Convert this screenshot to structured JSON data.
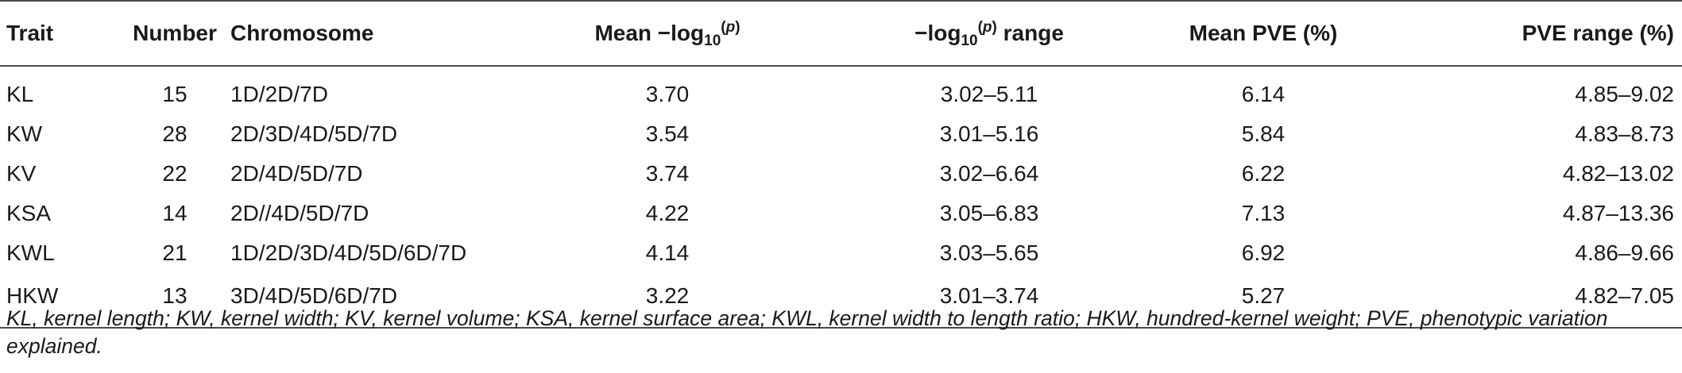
{
  "table": {
    "headers": {
      "trait": "Trait",
      "number": "Number",
      "chromosome": "Chromosome",
      "mean_log_prefix": "Mean −log",
      "mean_log_sub": "10",
      "mean_log_sup_open": "(",
      "mean_log_sup_p": "p",
      "mean_log_sup_close": ")",
      "range_log_prefix": "−log",
      "range_log_sub": "10",
      "range_log_sup_open": "(",
      "range_log_sup_p": "p",
      "range_log_sup_close": ")",
      "range_log_suffix": " range",
      "mean_pve": "Mean PVE (%)",
      "pve_range": "PVE range (%)"
    },
    "rows": [
      {
        "trait": "KL",
        "number": "15",
        "chromosome": "1D/2D/7D",
        "mean_log": "3.70",
        "log_range": "3.02–5.11",
        "mean_pve": "6.14",
        "pve_range": "4.85–9.02"
      },
      {
        "trait": "KW",
        "number": "28",
        "chromosome": "2D/3D/4D/5D/7D",
        "mean_log": "3.54",
        "log_range": "3.01–5.16",
        "mean_pve": "5.84",
        "pve_range": "4.83–8.73"
      },
      {
        "trait": "KV",
        "number": "22",
        "chromosome": "2D/4D/5D/7D",
        "mean_log": "3.74",
        "log_range": "3.02–6.64",
        "mean_pve": "6.22",
        "pve_range": "4.82–13.02"
      },
      {
        "trait": "KSA",
        "number": "14",
        "chromosome": "2D//4D/5D/7D",
        "mean_log": "4.22",
        "log_range": "3.05–6.83",
        "mean_pve": "7.13",
        "pve_range": "4.87–13.36"
      },
      {
        "trait": "KWL",
        "number": "21",
        "chromosome": "1D/2D/3D/4D/5D/6D/7D",
        "mean_log": "4.14",
        "log_range": "3.03–5.65",
        "mean_pve": "6.92",
        "pve_range": "4.86–9.66"
      },
      {
        "trait": "HKW",
        "number": "13",
        "chromosome": "3D/4D/5D/6D/7D",
        "mean_log": "3.22",
        "log_range": "3.01–3.74",
        "mean_pve": "5.27",
        "pve_range": "4.82–7.05"
      }
    ]
  },
  "footnote": "KL, kernel length; KW, kernel width; KV, kernel volume; KSA, kernel surface area; KWL, kernel width to length ratio; HKW, hundred-kernel weight; PVE, phenotypic variation explained."
}
